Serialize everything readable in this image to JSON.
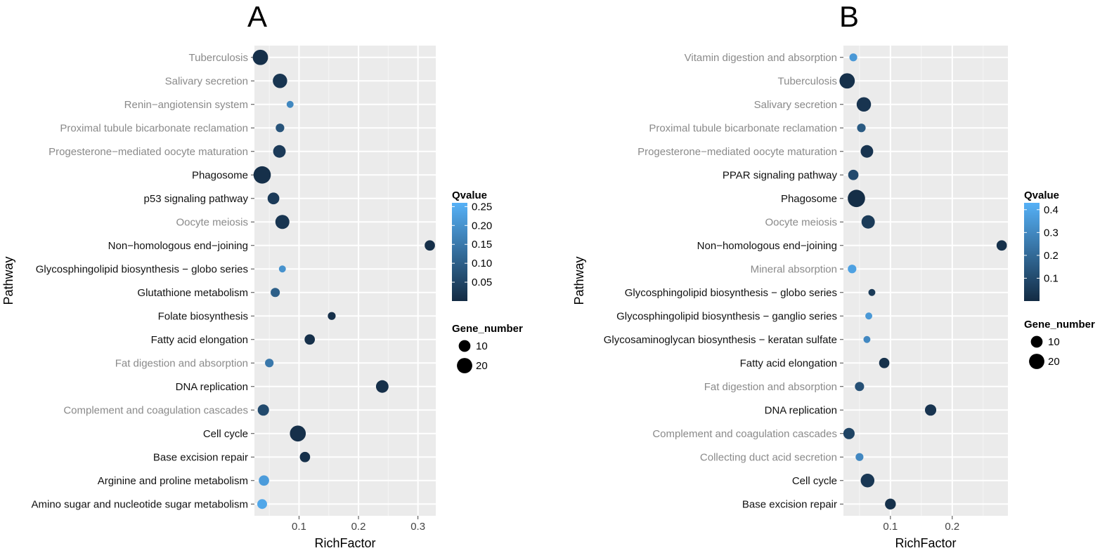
{
  "chart_data": [
    {
      "panel_label": "A",
      "type": "scatter",
      "xlabel": "RichFactor",
      "ylabel": "Pathway",
      "xlim": [
        0.025,
        0.33
      ],
      "xticks": [
        0.1,
        0.2,
        0.3
      ],
      "grid": true,
      "legend_position": "right",
      "color_legend": {
        "title": "Qvalue",
        "range": [
          0.0,
          0.26
        ],
        "ticks": [
          0.25,
          0.2,
          0.15,
          0.1,
          0.05
        ],
        "low_color": "#132b43",
        "high_color": "#56b1f7"
      },
      "size_legend": {
        "title": "Gene_number",
        "entries": [
          10,
          20
        ]
      },
      "pathways": [
        "Tuberculosis",
        "Salivary secretion",
        "Renin−angiotensin system",
        "Proximal tubule bicarbonate reclamation",
        "Progesterone−mediated oocyte maturation",
        "Phagosome",
        "p53 signaling pathway",
        "Oocyte meiosis",
        "Non−homologous end−joining",
        "Glycosphingolipid biosynthesis − globo series",
        "Glutathione metabolism",
        "Folate biosynthesis",
        "Fatty acid elongation",
        "Fat digestion and absorption",
        "DNA replication",
        "Complement and coagulation cascades",
        "Cell cycle",
        "Base excision repair",
        "Arginine and proline metabolism",
        "Amino sugar and nucleotide sugar metabolism"
      ],
      "rich_factor": [
        0.035,
        0.068,
        0.085,
        0.068,
        0.067,
        0.038,
        0.057,
        0.072,
        0.32,
        0.072,
        0.06,
        0.155,
        0.118,
        0.05,
        0.24,
        0.04,
        0.098,
        0.11,
        0.041,
        0.038
      ],
      "qvalue": [
        0.01,
        0.02,
        0.18,
        0.08,
        0.03,
        0.01,
        0.03,
        0.02,
        0.01,
        0.2,
        0.1,
        0.01,
        0.01,
        0.15,
        0.01,
        0.06,
        0.01,
        0.01,
        0.22,
        0.24
      ],
      "gene_number": [
        20,
        17,
        2,
        4,
        12,
        27,
        10,
        16,
        7,
        2,
        5,
        3,
        7,
        4,
        12,
        9,
        22,
        7,
        7,
        6
      ],
      "label_color": [
        "#8a8a8a",
        "#8a8a8a",
        "#8a8a8a",
        "#8a8a8a",
        "#8a8a8a",
        "#111111",
        "#111111",
        "#8a8a8a",
        "#111111",
        "#111111",
        "#111111",
        "#111111",
        "#111111",
        "#8a8a8a",
        "#111111",
        "#8a8a8a",
        "#111111",
        "#111111",
        "#111111",
        "#111111"
      ]
    },
    {
      "panel_label": "B",
      "type": "scatter",
      "xlabel": "RichFactor",
      "ylabel": "Pathway",
      "xlim": [
        0.024,
        0.29
      ],
      "xticks": [
        0.1,
        0.2
      ],
      "grid": true,
      "legend_position": "right",
      "color_legend": {
        "title": "Qvalue",
        "range": [
          0.0,
          0.43
        ],
        "ticks": [
          0.4,
          0.3,
          0.2,
          0.1
        ],
        "low_color": "#132b43",
        "high_color": "#56b1f7"
      },
      "size_legend": {
        "title": "Gene_number",
        "entries": [
          10,
          20
        ]
      },
      "pathways": [
        "Vitamin digestion and absorption",
        "Tuberculosis",
        "Salivary secretion",
        "Proximal tubule bicarbonate reclamation",
        "Progesterone−mediated oocyte maturation",
        "PPAR signaling pathway",
        "Phagosome",
        "Oocyte meiosis",
        "Non−homologous end−joining",
        "Mineral absorption",
        "Glycosphingolipid biosynthesis − globo series",
        "Glycosphingolipid biosynthesis − ganglio series",
        "Glycosaminoglycan biosynthesis − keratan sulfate",
        "Fatty acid elongation",
        "Fat digestion and absorption",
        "DNA replication",
        "Complement and coagulation cascades",
        "Collecting duct acid secretion",
        "Cell cycle",
        "Base excision repair"
      ],
      "rich_factor": [
        0.04,
        0.03,
        0.057,
        0.053,
        0.062,
        0.04,
        0.045,
        0.064,
        0.28,
        0.038,
        0.07,
        0.065,
        0.062,
        0.09,
        0.05,
        0.165,
        0.033,
        0.05,
        0.063,
        0.1
      ],
      "qvalue": [
        0.35,
        0.02,
        0.03,
        0.15,
        0.03,
        0.1,
        0.01,
        0.05,
        0.02,
        0.38,
        0.05,
        0.35,
        0.3,
        0.02,
        0.12,
        0.03,
        0.08,
        0.3,
        0.04,
        0.02
      ],
      "gene_number": [
        3,
        20,
        17,
        4,
        12,
        7,
        27,
        14,
        7,
        4,
        2,
        2,
        2,
        7,
        5,
        9,
        9,
        3,
        15,
        8
      ],
      "label_color": [
        "#8a8a8a",
        "#8a8a8a",
        "#8a8a8a",
        "#8a8a8a",
        "#8a8a8a",
        "#111111",
        "#111111",
        "#8a8a8a",
        "#111111",
        "#8a8a8a",
        "#111111",
        "#111111",
        "#111111",
        "#111111",
        "#8a8a8a",
        "#111111",
        "#8a8a8a",
        "#8a8a8a",
        "#111111",
        "#111111"
      ]
    }
  ]
}
